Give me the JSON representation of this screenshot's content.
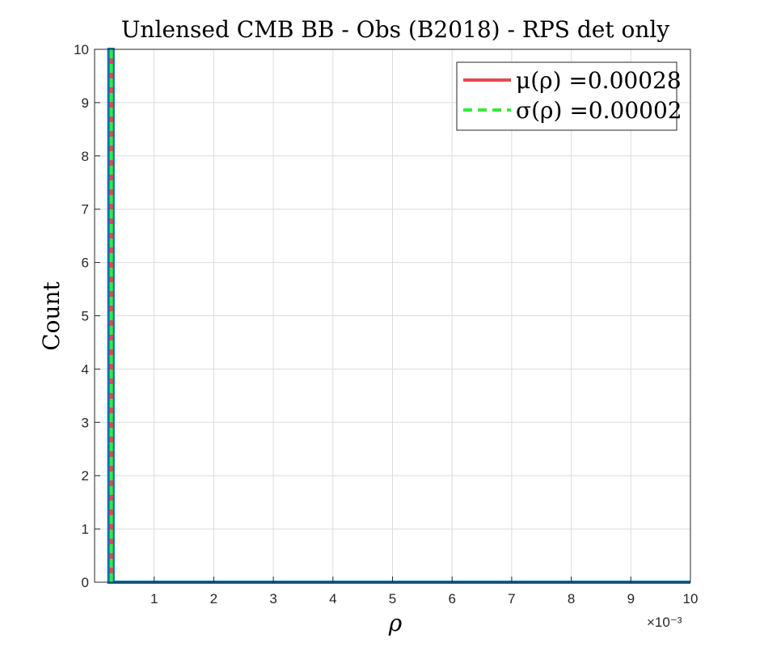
{
  "chart_data": {
    "type": "bar",
    "title": "Unlensed CMB BB - Obs (B2018) - RPS det only",
    "xlabel": "ρ",
    "ylabel": "Count",
    "x_exponent": "×10⁻³",
    "xlim": [
      0,
      0.01
    ],
    "ylim": [
      0,
      10
    ],
    "x_ticks": [
      0.001,
      0.002,
      0.003,
      0.004,
      0.005,
      0.006,
      0.007,
      0.008,
      0.009,
      0.01
    ],
    "x_tick_labels": [
      "1",
      "2",
      "3",
      "4",
      "5",
      "6",
      "7",
      "8",
      "9",
      "10"
    ],
    "y_ticks": [
      0,
      1,
      2,
      3,
      4,
      5,
      6,
      7,
      8,
      9,
      10
    ],
    "y_tick_labels": [
      "0",
      "1",
      "2",
      "3",
      "4",
      "5",
      "6",
      "7",
      "8",
      "9",
      "10"
    ],
    "grid": true,
    "histogram": {
      "bins": [
        {
          "x0": 0.00024,
          "x1": 0.00031,
          "count": 10
        },
        {
          "x0": 0.00031,
          "x1": 0.01,
          "count": 0
        }
      ],
      "color": "#0072BD"
    },
    "vlines": [
      {
        "label": "μ(ρ) =0.00028",
        "x": 0.00028,
        "color": "#e8474c",
        "style": "solid"
      },
      {
        "label": "σ(ρ) =0.00002",
        "x": 0.00028,
        "color": "#33ee33",
        "style": "dashed"
      }
    ],
    "legend": {
      "placement": "top-right",
      "entries": [
        {
          "text": "μ(ρ) =0.00028",
          "color": "#e8474c",
          "style": "solid"
        },
        {
          "text": "σ(ρ) =0.00002",
          "color": "#33ee33",
          "style": "dashed"
        }
      ]
    }
  }
}
